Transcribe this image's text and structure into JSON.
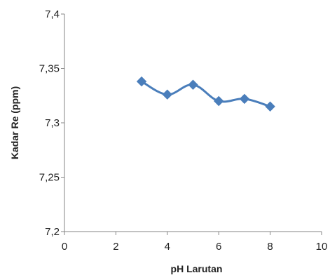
{
  "chart_data": {
    "type": "line",
    "title": "",
    "xlabel": "pH Larutan",
    "ylabel": "Kadar Re (ppm)",
    "xlim": [
      0,
      10
    ],
    "ylim": [
      7.2,
      7.4
    ],
    "x_ticks": [
      0,
      2,
      4,
      6,
      8,
      10
    ],
    "y_ticks": [
      7.2,
      7.25,
      7.3,
      7.35,
      7.4
    ],
    "x_tick_labels": [
      "0",
      "2",
      "4",
      "6",
      "8",
      "10"
    ],
    "y_tick_labels": [
      "7,2",
      "7,25",
      "7,3",
      "7,35",
      "7,4"
    ],
    "grid": false,
    "legend": "none",
    "series": [
      {
        "x": [
          3,
          4,
          5,
          6,
          7,
          8
        ],
        "values": [
          7.338,
          7.326,
          7.335,
          7.32,
          7.322,
          7.315
        ],
        "color": "#4a7ebb",
        "marker": "diamond"
      }
    ]
  },
  "colors": {
    "axis": "#868686",
    "series": "#4a7ebb"
  }
}
